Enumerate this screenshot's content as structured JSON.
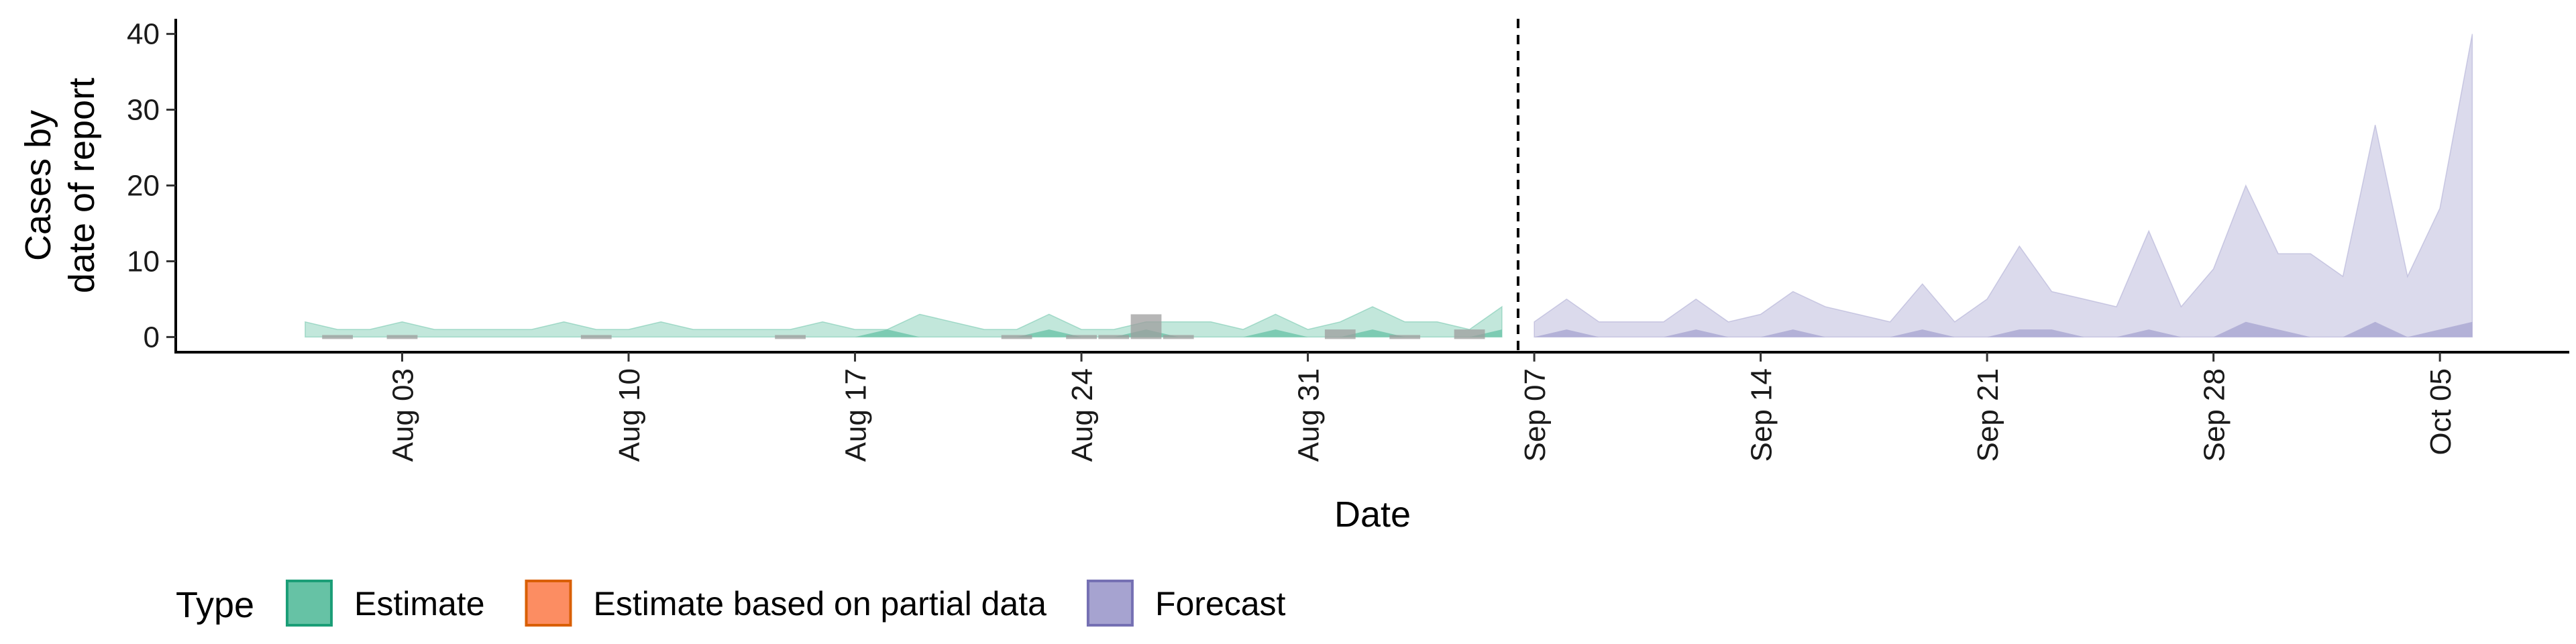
{
  "chart_data": {
    "type": "area",
    "title": "",
    "xlabel": "Date",
    "ylabel_lines": [
      "Cases by",
      "date of report"
    ],
    "xlim": [
      "2020-07-27",
      "2020-10-09"
    ],
    "ylim": [
      -2,
      42
    ],
    "y_ticks": [
      0,
      10,
      20,
      30,
      40
    ],
    "x_tick_labels": [
      "Aug 03",
      "Aug 10",
      "Aug 17",
      "Aug 24",
      "Aug 31",
      "Sep 07",
      "Sep 14",
      "Sep 21",
      "Sep 28",
      "Oct 05"
    ],
    "x_tick_dates": [
      "2020-08-03",
      "2020-08-10",
      "2020-08-17",
      "2020-08-24",
      "2020-08-31",
      "2020-09-07",
      "2020-09-14",
      "2020-09-21",
      "2020-09-28",
      "2020-10-05"
    ],
    "forecast_start": "2020-09-06",
    "grid": false,
    "legend_position": "bottom-left",
    "legend": {
      "title": "Type",
      "items": [
        {
          "label": "Estimate",
          "fill": "#66c2a5",
          "stroke": "#1b9e77"
        },
        {
          "label": "Estimate based on partial data",
          "fill": "#fc8d62",
          "stroke": "#d95f02"
        },
        {
          "label": "Forecast",
          "fill": "#a6a3d0",
          "stroke": "#7570b3"
        }
      ]
    },
    "series": [
      {
        "name": "Estimate",
        "fill": "#66c2a5",
        "start_date": "2020-07-31",
        "outer_upper": [
          2,
          1,
          1,
          2,
          1,
          1,
          1,
          1,
          2,
          1,
          1,
          2,
          1,
          1,
          1,
          1,
          2,
          1,
          1,
          3,
          2,
          1,
          1,
          3,
          1,
          1,
          2,
          2,
          2,
          1,
          3,
          1,
          2,
          4,
          2,
          2,
          1,
          4
        ],
        "inner_upper": [
          0,
          0,
          0,
          0,
          0,
          0,
          0,
          0,
          0,
          0,
          0,
          0,
          0,
          0,
          0,
          0,
          0,
          0,
          1,
          0,
          0,
          0,
          0,
          1,
          0,
          0,
          1,
          0,
          0,
          0,
          1,
          0,
          0,
          1,
          0,
          0,
          0,
          1
        ]
      },
      {
        "name": "Forecast",
        "fill": "#a6a3d0",
        "start_date": "2020-09-07",
        "outer_upper": [
          2,
          5,
          2,
          2,
          2,
          5,
          2,
          3,
          6,
          4,
          3,
          2,
          7,
          2,
          5,
          12,
          6,
          5,
          4,
          14,
          4,
          9,
          20,
          11,
          11,
          8,
          28,
          8,
          17,
          40
        ],
        "inner_upper": [
          0,
          1,
          0,
          0,
          0,
          1,
          0,
          0,
          1,
          0,
          0,
          0,
          1,
          0,
          0,
          1,
          1,
          0,
          0,
          1,
          0,
          0,
          2,
          1,
          0,
          0,
          2,
          0,
          1,
          2
        ]
      }
    ],
    "reported_cases": {
      "start_date": "2020-08-01",
      "values": [
        0,
        null,
        0,
        null,
        null,
        null,
        null,
        null,
        0,
        null,
        null,
        null,
        null,
        null,
        0,
        null,
        null,
        null,
        null,
        null,
        null,
        0,
        null,
        0,
        0,
        3,
        0,
        null,
        null,
        null,
        null,
        1,
        null,
        0,
        null,
        1
      ]
    }
  }
}
